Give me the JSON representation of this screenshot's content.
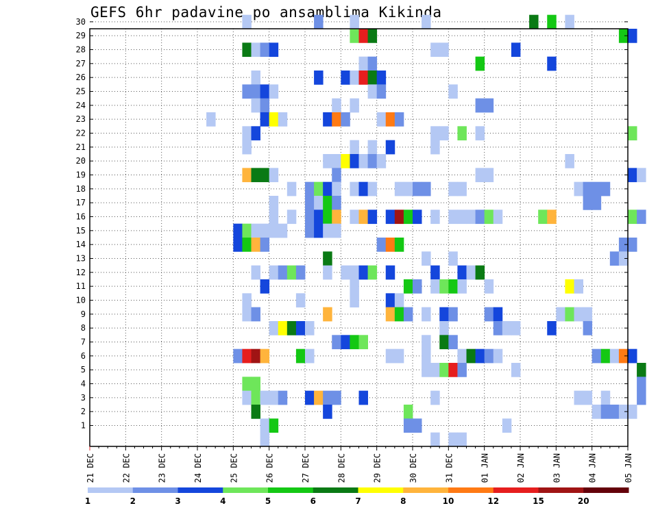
{
  "chart_data": {
    "type": "heatmap",
    "title": "GEFS 6hr padavine po ansamblima Kikinda",
    "xlabel": "",
    "ylabel": "",
    "x_tick_labels": [
      "21 DEC",
      "22 DEC",
      "23 DEC",
      "24 DEC",
      "25 DEC",
      "26 DEC",
      "27 DEC",
      "28 DEC",
      "29 DEC",
      "30 DEC",
      "31 DEC",
      "01 JAN",
      "02 JAN",
      "03 JAN",
      "04 JAN",
      "05 JAN"
    ],
    "y_tick_labels": [
      "1",
      "2",
      "3",
      "4",
      "5",
      "6",
      "7",
      "8",
      "9",
      "10",
      "11",
      "12",
      "13",
      "14",
      "15",
      "16",
      "17",
      "18",
      "19",
      "20",
      "21",
      "22",
      "23",
      "24",
      "25",
      "26",
      "27",
      "28",
      "29",
      "30"
    ],
    "x_range": [
      "21 DEC 00",
      "05 JAN 00"
    ],
    "y_range": [
      1,
      30
    ],
    "time_step_hours": 6,
    "grid": true,
    "legend": {
      "placement": "bottom",
      "labels": [
        "1",
        "2",
        "3",
        "4",
        "5",
        "6",
        "7",
        "8",
        "10",
        "12",
        "15",
        "20"
      ],
      "colors": [
        "#b4c8f4",
        "#6e90e6",
        "#1446dc",
        "#6ee65a",
        "#14c814",
        "#0a7a14",
        "#ffff00",
        "#ffb43c",
        "#ff7a14",
        "#e61e1e",
        "#a01414",
        "#64000a"
      ]
    },
    "cell_value_legend": "each cell: member (1-30) and 6-hour step index since 21 DEC 00 (step 0..59); value = 6hr precipitation, level index 0..11 into legend colors",
    "cells": [
      [
        30,
        [
          [
            4.25,
            0
          ],
          [
            6.25,
            1
          ],
          [
            7.25,
            0
          ],
          [
            9.25,
            0
          ],
          [
            12.25,
            5
          ],
          [
            12.75,
            4
          ],
          [
            13.25,
            0
          ]
        ]
      ],
      [
        29,
        [
          [
            7.25,
            3
          ],
          [
            7.5,
            9
          ],
          [
            7.75,
            5
          ],
          [
            14.75,
            4
          ],
          [
            15,
            2
          ]
        ]
      ],
      [
        28,
        [
          [
            4.25,
            5
          ],
          [
            4.5,
            0
          ],
          [
            4.75,
            1
          ],
          [
            5,
            2
          ],
          [
            9.5,
            0
          ],
          [
            9.75,
            0
          ],
          [
            11.75,
            2
          ]
        ]
      ],
      [
        27,
        [
          [
            7.5,
            0
          ],
          [
            7.75,
            1
          ],
          [
            10.75,
            4
          ],
          [
            12.75,
            2
          ]
        ]
      ],
      [
        26,
        [
          [
            4.5,
            0
          ],
          [
            6.25,
            2
          ],
          [
            7,
            2
          ],
          [
            7.25,
            0
          ],
          [
            7.5,
            9
          ],
          [
            7.75,
            5
          ],
          [
            8,
            2
          ]
        ]
      ],
      [
        25,
        [
          [
            4.25,
            1
          ],
          [
            4.5,
            1
          ],
          [
            4.75,
            2
          ],
          [
            5,
            0
          ],
          [
            7.75,
            0
          ],
          [
            8,
            1
          ],
          [
            10,
            0
          ]
        ]
      ],
      [
        24,
        [
          [
            4.5,
            0
          ],
          [
            4.75,
            1
          ],
          [
            6.75,
            0
          ],
          [
            7.25,
            0
          ],
          [
            10.75,
            1
          ],
          [
            11,
            1
          ]
        ]
      ],
      [
        23,
        [
          [
            3.25,
            0
          ],
          [
            4.75,
            2
          ],
          [
            5,
            6
          ],
          [
            5.25,
            0
          ],
          [
            6.5,
            2
          ],
          [
            6.75,
            8
          ],
          [
            7,
            1
          ],
          [
            8,
            0
          ],
          [
            8.25,
            8
          ],
          [
            8.5,
            1
          ]
        ]
      ],
      [
        22,
        [
          [
            4.25,
            0
          ],
          [
            4.5,
            2
          ],
          [
            9.5,
            0
          ],
          [
            9.75,
            0
          ],
          [
            10.25,
            3
          ],
          [
            10.75,
            0
          ],
          [
            15,
            3
          ]
        ]
      ],
      [
        21,
        [
          [
            4.25,
            0
          ],
          [
            7.25,
            0
          ],
          [
            7.75,
            0
          ],
          [
            8.25,
            2
          ],
          [
            9.5,
            0
          ]
        ]
      ],
      [
        20,
        [
          [
            6.5,
            0
          ],
          [
            6.75,
            0
          ],
          [
            7,
            6
          ],
          [
            7.25,
            2
          ],
          [
            7.5,
            0
          ],
          [
            7.75,
            1
          ],
          [
            8,
            0
          ],
          [
            13.25,
            0
          ]
        ]
      ],
      [
        19,
        [
          [
            4.25,
            7
          ],
          [
            4.5,
            5
          ],
          [
            4.75,
            5
          ],
          [
            5,
            0
          ],
          [
            6.75,
            1
          ],
          [
            10.75,
            0
          ],
          [
            11,
            0
          ],
          [
            15,
            2
          ],
          [
            15.25,
            0
          ]
        ]
      ],
      [
        18,
        [
          [
            5.5,
            0
          ],
          [
            6,
            1
          ],
          [
            6.25,
            3
          ],
          [
            6.5,
            2
          ],
          [
            6.75,
            0
          ],
          [
            7.25,
            0
          ],
          [
            7.5,
            2
          ],
          [
            7.75,
            0
          ],
          [
            8.5,
            0
          ],
          [
            8.75,
            0
          ],
          [
            9,
            1
          ],
          [
            9.25,
            1
          ],
          [
            10,
            0
          ],
          [
            10.25,
            0
          ],
          [
            13.5,
            0
          ],
          [
            13.75,
            1
          ],
          [
            14,
            1
          ],
          [
            14.25,
            1
          ]
        ]
      ],
      [
        17,
        [
          [
            5,
            0
          ],
          [
            6,
            1
          ],
          [
            6.25,
            0
          ],
          [
            6.5,
            4
          ],
          [
            6.75,
            1
          ],
          [
            13.75,
            1
          ],
          [
            14,
            1
          ]
        ]
      ],
      [
        16,
        [
          [
            5,
            0
          ],
          [
            5.5,
            0
          ],
          [
            6,
            1
          ],
          [
            6.25,
            2
          ],
          [
            6.5,
            4
          ],
          [
            6.75,
            7
          ],
          [
            7.25,
            0
          ],
          [
            7.5,
            7
          ],
          [
            7.75,
            2
          ],
          [
            8.25,
            2
          ],
          [
            8.5,
            10
          ],
          [
            8.75,
            4
          ],
          [
            9,
            2
          ],
          [
            9.5,
            0
          ],
          [
            10,
            0
          ],
          [
            10.25,
            0
          ],
          [
            10.5,
            0
          ],
          [
            10.75,
            1
          ],
          [
            11,
            3
          ],
          [
            11.25,
            0
          ],
          [
            12.5,
            3
          ],
          [
            12.75,
            7
          ],
          [
            15,
            3
          ],
          [
            15.25,
            1
          ]
        ]
      ],
      [
        15,
        [
          [
            4,
            2
          ],
          [
            4.25,
            3
          ],
          [
            4.5,
            0
          ],
          [
            4.75,
            0
          ],
          [
            5,
            0
          ],
          [
            5.25,
            0
          ],
          [
            6,
            1
          ],
          [
            6.25,
            2
          ],
          [
            6.5,
            0
          ],
          [
            6.75,
            0
          ]
        ]
      ],
      [
        14,
        [
          [
            4,
            2
          ],
          [
            4.25,
            4
          ],
          [
            4.5,
            7
          ],
          [
            4.75,
            1
          ],
          [
            8,
            1
          ],
          [
            8.25,
            8
          ],
          [
            8.5,
            4
          ],
          [
            14.75,
            1
          ],
          [
            15,
            1
          ]
        ]
      ],
      [
        13,
        [
          [
            6.5,
            5
          ],
          [
            9.25,
            0
          ],
          [
            10,
            0
          ],
          [
            14.5,
            1
          ],
          [
            14.75,
            0
          ]
        ]
      ],
      [
        12,
        [
          [
            4.5,
            0
          ],
          [
            5,
            0
          ],
          [
            5.25,
            1
          ],
          [
            5.5,
            3
          ],
          [
            5.75,
            1
          ],
          [
            6.5,
            0
          ],
          [
            7,
            0
          ],
          [
            7.25,
            0
          ],
          [
            7.5,
            2
          ],
          [
            7.75,
            3
          ],
          [
            8.25,
            2
          ],
          [
            9.5,
            2
          ],
          [
            10.25,
            2
          ],
          [
            10.5,
            0
          ],
          [
            10.75,
            5
          ]
        ]
      ],
      [
        11,
        [
          [
            4.75,
            2
          ],
          [
            7.25,
            0
          ],
          [
            8.75,
            4
          ],
          [
            9,
            1
          ],
          [
            9.5,
            0
          ],
          [
            9.75,
            3
          ],
          [
            10,
            4
          ],
          [
            10.25,
            0
          ],
          [
            11,
            0
          ],
          [
            13.25,
            6
          ],
          [
            13.5,
            0
          ]
        ]
      ],
      [
        10,
        [
          [
            4.25,
            0
          ],
          [
            5.75,
            0
          ],
          [
            7.25,
            0
          ],
          [
            8.25,
            2
          ],
          [
            8.5,
            0
          ]
        ]
      ],
      [
        9,
        [
          [
            4.25,
            0
          ],
          [
            4.5,
            1
          ],
          [
            6.5,
            7
          ],
          [
            8.25,
            7
          ],
          [
            8.5,
            4
          ],
          [
            8.75,
            1
          ],
          [
            9.25,
            0
          ],
          [
            9.75,
            2
          ],
          [
            10,
            1
          ],
          [
            11,
            1
          ],
          [
            11.25,
            2
          ],
          [
            13,
            0
          ],
          [
            13.25,
            3
          ],
          [
            13.5,
            0
          ],
          [
            13.75,
            0
          ]
        ]
      ],
      [
        8,
        [
          [
            5,
            0
          ],
          [
            5.25,
            6
          ],
          [
            5.5,
            5
          ],
          [
            5.75,
            2
          ],
          [
            6,
            0
          ],
          [
            9.75,
            0
          ],
          [
            11.25,
            1
          ],
          [
            11.5,
            0
          ],
          [
            11.75,
            0
          ],
          [
            12.75,
            2
          ],
          [
            13.75,
            1
          ]
        ]
      ],
      [
        7,
        [
          [
            6.75,
            1
          ],
          [
            7,
            2
          ],
          [
            7.25,
            4
          ],
          [
            7.5,
            3
          ],
          [
            9.25,
            0
          ],
          [
            9.75,
            5
          ],
          [
            10,
            1
          ]
        ]
      ],
      [
        6,
        [
          [
            4,
            1
          ],
          [
            4.25,
            9
          ],
          [
            4.5,
            10
          ],
          [
            4.75,
            7
          ],
          [
            5.75,
            4
          ],
          [
            6,
            0
          ],
          [
            8.25,
            0
          ],
          [
            8.5,
            0
          ],
          [
            9.25,
            0
          ],
          [
            10.25,
            0
          ],
          [
            10.5,
            5
          ],
          [
            10.75,
            2
          ],
          [
            11,
            1
          ],
          [
            11.25,
            0
          ],
          [
            14,
            1
          ],
          [
            14.25,
            4
          ],
          [
            14.5,
            0
          ],
          [
            14.75,
            8
          ],
          [
            15,
            2
          ]
        ]
      ],
      [
        5,
        [
          [
            9.25,
            0
          ],
          [
            9.5,
            0
          ],
          [
            9.75,
            3
          ],
          [
            10,
            9
          ],
          [
            10.25,
            1
          ],
          [
            11.75,
            0
          ],
          [
            15.25,
            5
          ]
        ]
      ],
      [
        4,
        [
          [
            4.25,
            3
          ],
          [
            4.5,
            3
          ],
          [
            15.25,
            1
          ]
        ]
      ],
      [
        3,
        [
          [
            4.25,
            0
          ],
          [
            4.5,
            3
          ],
          [
            4.75,
            0
          ],
          [
            5,
            0
          ],
          [
            5.25,
            1
          ],
          [
            6,
            2
          ],
          [
            6.25,
            7
          ],
          [
            6.5,
            1
          ],
          [
            6.75,
            1
          ],
          [
            7.5,
            2
          ],
          [
            9.5,
            0
          ],
          [
            13.5,
            0
          ],
          [
            13.75,
            0
          ],
          [
            14.25,
            0
          ],
          [
            15.25,
            1
          ]
        ]
      ],
      [
        2,
        [
          [
            4.5,
            5
          ],
          [
            6.5,
            2
          ],
          [
            8.75,
            3
          ],
          [
            14,
            0
          ],
          [
            14.25,
            1
          ],
          [
            14.5,
            1
          ],
          [
            14.75,
            0
          ],
          [
            15,
            0
          ]
        ]
      ],
      [
        1,
        [
          [
            4.75,
            0
          ],
          [
            5,
            4
          ],
          [
            8.75,
            1
          ],
          [
            9,
            1
          ],
          [
            11.5,
            0
          ]
        ]
      ],
      [
        0,
        [
          [
            4.75,
            0
          ],
          [
            9.5,
            0
          ],
          [
            10,
            0
          ],
          [
            10.25,
            0
          ]
        ]
      ]
    ]
  }
}
